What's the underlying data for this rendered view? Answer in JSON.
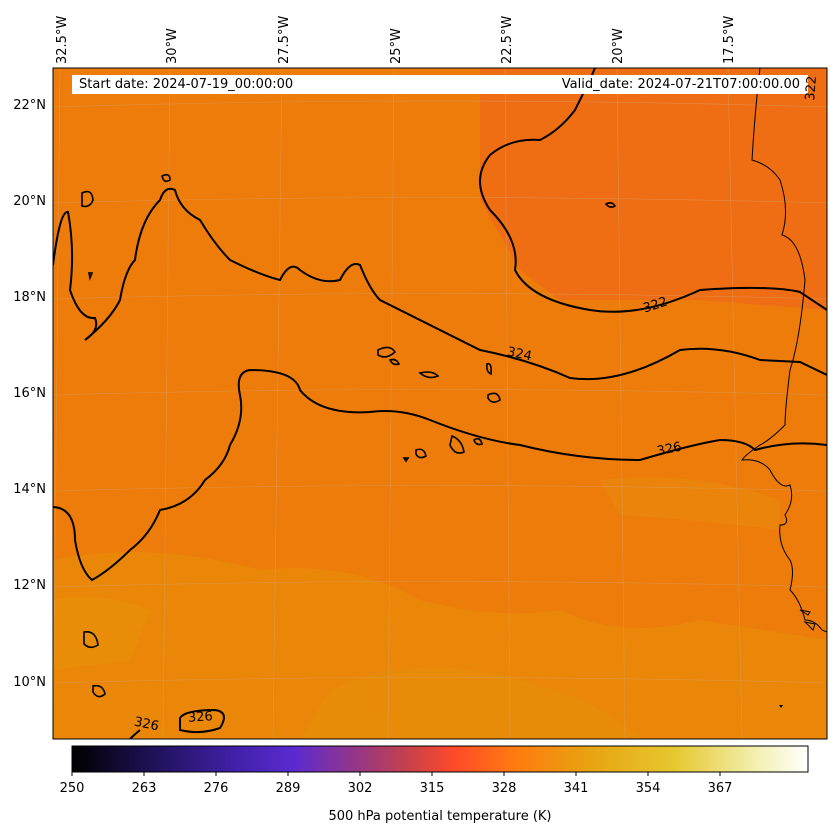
{
  "header": {
    "start_date": "Start date: 2024-07-19_00:00:00",
    "valid_date": "Valid_date: 2024-07-21T07:00:00.00"
  },
  "axes": {
    "longitude_labels": [
      "32.5°W",
      "30°W",
      "27.5°W",
      "25°W",
      "22.5°W",
      "20°W",
      "17.5°W"
    ],
    "latitude_labels": [
      "22°N",
      "20°N",
      "18°N",
      "16°N",
      "14°N",
      "12°N",
      "10°N"
    ]
  },
  "contours": {
    "labels": [
      "322",
      "324",
      "326",
      "326",
      "326",
      "322"
    ]
  },
  "colorbar": {
    "label": "500 hPa potential temperature (K)",
    "ticks": [
      "250",
      "263",
      "276",
      "289",
      "302",
      "315",
      "328",
      "341",
      "354",
      "367"
    ],
    "colors": [
      "#000000",
      "#3a1fa8",
      "#5b2bd0",
      "#c0404a",
      "#ff4a2a",
      "#ff7a10",
      "#e8a010",
      "#e8c020",
      "#f2f0a0",
      "#ffffff"
    ]
  },
  "colors": {
    "field_base": "#ef7c0a",
    "field_warm_north": "#ee6e12",
    "field_south": "#e98a08",
    "coastline": "#000000",
    "contour": "#000000"
  }
}
